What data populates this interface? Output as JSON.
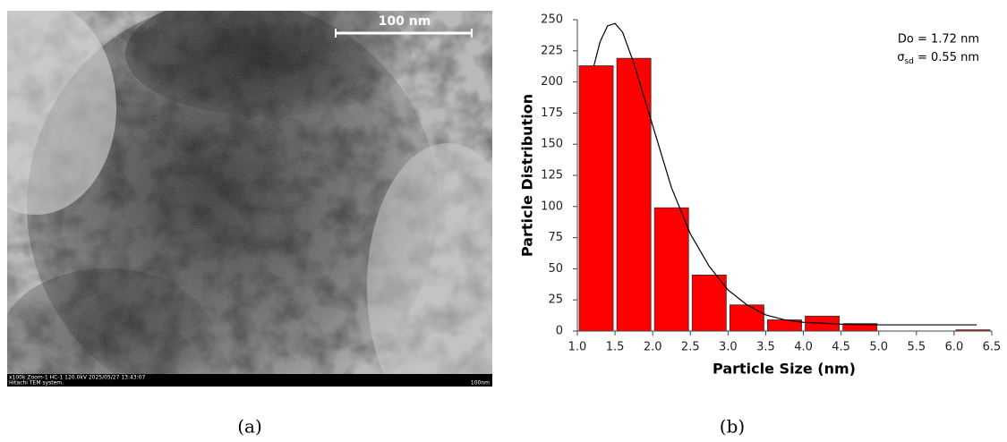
{
  "panel_a": {
    "scale_bar": "100 nm",
    "footer_line_1": "x100k Zoom-1 HC-1 120.0kV 2025/05/27 13:43:07",
    "footer_line_2": "Hitachi TEM system.",
    "footer_scale": "100nm",
    "caption": "(a)"
  },
  "panel_b": {
    "caption": "(b)"
  },
  "chart_data": {
    "type": "histogram",
    "xlabel": "Particle Size (nm)",
    "ylabel": "Particle Distribution",
    "bins": [
      1,
      1.5,
      2,
      2.5,
      3,
      3.5,
      4,
      4.5,
      5,
      5.5,
      6,
      6.5
    ],
    "values": [
      213,
      219,
      99,
      45,
      21,
      9,
      12,
      6,
      0,
      0,
      1
    ],
    "color": "#ff0000",
    "fit": {
      "x": [
        1.22,
        1.3,
        1.4,
        1.5,
        1.6,
        1.75,
        2.0,
        2.25,
        2.5,
        2.75,
        3.0,
        3.25,
        3.5,
        3.75,
        4.0,
        4.5,
        5.0,
        5.5,
        6.0,
        6.3
      ],
      "values": [
        213,
        232,
        245,
        247,
        240,
        215,
        165,
        115,
        78,
        52,
        33,
        21,
        13,
        9,
        7,
        5.5,
        5,
        5,
        5,
        5
      ]
    },
    "annotations": [
      {
        "text": "Do = 1.72 nm"
      },
      {
        "symbol": "σ",
        "subscript": "sd",
        "text": " = 0.55 nm"
      }
    ],
    "xlim": [
      1,
      6.5
    ],
    "xticks": [
      {
        "value": 1,
        "label": "1.0"
      },
      {
        "value": 1.5,
        "label": "1.5"
      },
      {
        "value": 2,
        "label": "2.0"
      },
      {
        "value": 2.5,
        "label": "2.5"
      },
      {
        "value": 3,
        "label": "3.0"
      },
      {
        "value": 3.5,
        "label": "3.5"
      },
      {
        "value": 4,
        "label": "4.0"
      },
      {
        "value": 4.5,
        "label": "4.5"
      },
      {
        "value": 5,
        "label": "5.0"
      },
      {
        "value": 5.5,
        "label": "5.5"
      },
      {
        "value": 6,
        "label": "6.0"
      },
      {
        "value": 6.5,
        "label": "6.5"
      }
    ],
    "ylim": [
      0,
      250
    ],
    "yticks": [
      0,
      25,
      50,
      75,
      100,
      125,
      150,
      175,
      200,
      225,
      250
    ],
    "grid": false
  }
}
